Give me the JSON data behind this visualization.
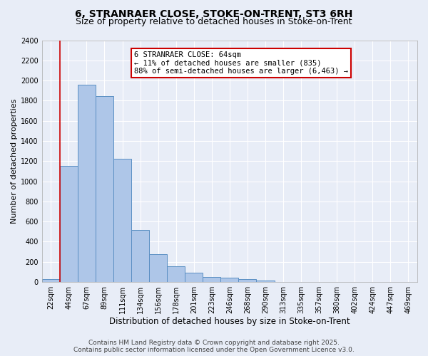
{
  "title1": "6, STRANRAER CLOSE, STOKE-ON-TRENT, ST3 6RH",
  "title2": "Size of property relative to detached houses in Stoke-on-Trent",
  "xlabel": "Distribution of detached houses by size in Stoke-on-Trent",
  "ylabel": "Number of detached properties",
  "categories": [
    "22sqm",
    "44sqm",
    "67sqm",
    "89sqm",
    "111sqm",
    "134sqm",
    "156sqm",
    "178sqm",
    "201sqm",
    "223sqm",
    "246sqm",
    "268sqm",
    "290sqm",
    "313sqm",
    "335sqm",
    "357sqm",
    "380sqm",
    "402sqm",
    "424sqm",
    "447sqm",
    "469sqm"
  ],
  "values": [
    30,
    1155,
    1960,
    1845,
    1225,
    515,
    275,
    155,
    90,
    50,
    42,
    28,
    15,
    0,
    0,
    0,
    0,
    0,
    0,
    0,
    0
  ],
  "bar_color": "#aec6e8",
  "bar_edge_color": "#5a8fc3",
  "bg_color": "#e8edf7",
  "grid_color": "#ffffff",
  "annotation_text": "6 STRANRAER CLOSE: 64sqm\n← 11% of detached houses are smaller (835)\n88% of semi-detached houses are larger (6,463) →",
  "annotation_box_color": "#ffffff",
  "annotation_box_edge_color": "#cc0000",
  "vline_x": 0.5,
  "vline_color": "#cc0000",
  "footer1": "Contains HM Land Registry data © Crown copyright and database right 2025.",
  "footer2": "Contains public sector information licensed under the Open Government Licence v3.0.",
  "ylim": [
    0,
    2400
  ],
  "yticks": [
    0,
    200,
    400,
    600,
    800,
    1000,
    1200,
    1400,
    1600,
    1800,
    2000,
    2200,
    2400
  ],
  "title1_fontsize": 10,
  "title2_fontsize": 9,
  "xlabel_fontsize": 8.5,
  "ylabel_fontsize": 8,
  "tick_fontsize": 7,
  "annotation_fontsize": 7.5,
  "footer_fontsize": 6.5
}
